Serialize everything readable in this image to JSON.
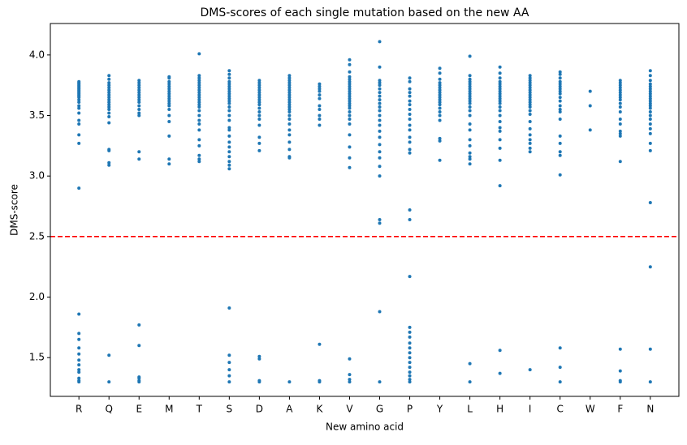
{
  "chart_data": {
    "type": "strip",
    "title": "DMS-scores of each single mutation based on the new AA",
    "x_label": "New amino acid",
    "y_label": "DMS-score",
    "color": "#1f77b4",
    "categories": [
      "R",
      "Q",
      "E",
      "M",
      "T",
      "S",
      "D",
      "A",
      "K",
      "V",
      "G",
      "P",
      "Y",
      "L",
      "H",
      "I",
      "C",
      "W",
      "F",
      "N"
    ],
    "values": [
      [
        3.78,
        3.77,
        3.76,
        3.75,
        3.74,
        3.73,
        3.72,
        3.71,
        3.7,
        3.69,
        3.68,
        3.67,
        3.66,
        3.65,
        3.63,
        3.61,
        3.58,
        3.56,
        3.52,
        3.46,
        3.43,
        3.34,
        3.27,
        2.9,
        1.86,
        1.7,
        1.65,
        1.58,
        1.53,
        1.48,
        1.44,
        1.4,
        1.38,
        1.33,
        1.31,
        1.3
      ],
      [
        3.83,
        3.8,
        3.77,
        3.75,
        3.73,
        3.71,
        3.69,
        3.67,
        3.65,
        3.63,
        3.61,
        3.59,
        3.57,
        3.55,
        3.52,
        3.49,
        3.44,
        3.22,
        3.21,
        3.11,
        3.09,
        1.52,
        1.3
      ],
      [
        3.79,
        3.77,
        3.75,
        3.73,
        3.71,
        3.69,
        3.67,
        3.65,
        3.63,
        3.61,
        3.58,
        3.55,
        3.52,
        3.5,
        3.2,
        3.14,
        1.77,
        1.6,
        1.34,
        1.33,
        1.31,
        1.3
      ],
      [
        3.82,
        3.81,
        3.78,
        3.76,
        3.74,
        3.72,
        3.7,
        3.68,
        3.66,
        3.64,
        3.62,
        3.6,
        3.58,
        3.55,
        3.5,
        3.45,
        3.33,
        3.14,
        3.1
      ],
      [
        4.01,
        3.83,
        3.81,
        3.79,
        3.77,
        3.75,
        3.73,
        3.71,
        3.69,
        3.67,
        3.65,
        3.63,
        3.61,
        3.59,
        3.57,
        3.54,
        3.5,
        3.46,
        3.43,
        3.38,
        3.3,
        3.25,
        3.17,
        3.14,
        3.12
      ],
      [
        3.87,
        3.84,
        3.81,
        3.78,
        3.76,
        3.74,
        3.72,
        3.7,
        3.68,
        3.66,
        3.64,
        3.62,
        3.6,
        3.57,
        3.54,
        3.5,
        3.46,
        3.4,
        3.38,
        3.33,
        3.28,
        3.24,
        3.2,
        3.16,
        3.12,
        3.09,
        3.06,
        1.91,
        1.52,
        1.46,
        1.4,
        1.35,
        1.3
      ],
      [
        3.79,
        3.77,
        3.75,
        3.73,
        3.71,
        3.69,
        3.67,
        3.65,
        3.63,
        3.61,
        3.59,
        3.56,
        3.53,
        3.5,
        3.47,
        3.42,
        3.32,
        3.27,
        3.21,
        1.51,
        1.49,
        1.31,
        1.3
      ],
      [
        3.83,
        3.81,
        3.79,
        3.77,
        3.75,
        3.73,
        3.71,
        3.69,
        3.67,
        3.65,
        3.63,
        3.61,
        3.59,
        3.57,
        3.55,
        3.53,
        3.5,
        3.47,
        3.43,
        3.38,
        3.34,
        3.28,
        3.22,
        3.16,
        3.15,
        1.3
      ],
      [
        3.76,
        3.74,
        3.72,
        3.7,
        3.67,
        3.64,
        3.58,
        3.55,
        3.5,
        3.47,
        3.42,
        1.61,
        1.31,
        1.3
      ],
      [
        3.96,
        3.92,
        3.86,
        3.82,
        3.8,
        3.78,
        3.76,
        3.74,
        3.72,
        3.7,
        3.68,
        3.66,
        3.64,
        3.62,
        3.6,
        3.58,
        3.56,
        3.53,
        3.5,
        3.47,
        3.43,
        3.34,
        3.24,
        3.15,
        3.07,
        1.49,
        1.36,
        1.32,
        1.3
      ],
      [
        4.11,
        3.9,
        3.79,
        3.77,
        3.75,
        3.72,
        3.69,
        3.66,
        3.63,
        3.6,
        3.57,
        3.54,
        3.5,
        3.46,
        3.42,
        3.37,
        3.32,
        3.26,
        3.2,
        3.15,
        3.08,
        3.0,
        2.64,
        2.61,
        1.88,
        1.3
      ],
      [
        3.81,
        3.78,
        3.72,
        3.69,
        3.66,
        3.62,
        3.59,
        3.55,
        3.51,
        3.47,
        3.42,
        3.38,
        3.32,
        3.28,
        3.22,
        3.19,
        2.72,
        2.64,
        2.17,
        1.75,
        1.71,
        1.67,
        1.62,
        1.58,
        1.54,
        1.5,
        1.46,
        1.42,
        1.38,
        1.35,
        1.32,
        1.3
      ],
      [
        3.89,
        3.85,
        3.8,
        3.77,
        3.75,
        3.73,
        3.71,
        3.69,
        3.67,
        3.65,
        3.63,
        3.61,
        3.59,
        3.56,
        3.53,
        3.5,
        3.46,
        3.31,
        3.29,
        3.13
      ],
      [
        3.99,
        3.83,
        3.8,
        3.78,
        3.76,
        3.74,
        3.72,
        3.7,
        3.68,
        3.66,
        3.64,
        3.62,
        3.6,
        3.57,
        3.54,
        3.5,
        3.43,
        3.38,
        3.3,
        3.25,
        3.19,
        3.16,
        3.14,
        3.1,
        1.45,
        1.3
      ],
      [
        3.9,
        3.85,
        3.81,
        3.78,
        3.76,
        3.74,
        3.72,
        3.7,
        3.68,
        3.66,
        3.64,
        3.62,
        3.6,
        3.57,
        3.54,
        3.5,
        3.45,
        3.4,
        3.37,
        3.3,
        3.23,
        3.13,
        2.92,
        1.56,
        1.37
      ],
      [
        3.83,
        3.81,
        3.79,
        3.77,
        3.75,
        3.73,
        3.71,
        3.69,
        3.67,
        3.65,
        3.63,
        3.61,
        3.59,
        3.57,
        3.54,
        3.51,
        3.45,
        3.39,
        3.34,
        3.3,
        3.27,
        3.23,
        3.2,
        1.4
      ],
      [
        3.86,
        3.84,
        3.81,
        3.78,
        3.76,
        3.74,
        3.72,
        3.7,
        3.68,
        3.65,
        3.62,
        3.58,
        3.55,
        3.53,
        3.47,
        3.33,
        3.27,
        3.2,
        3.17,
        3.01,
        1.58,
        1.42,
        1.3
      ],
      [
        3.7,
        3.58,
        3.38
      ],
      [
        3.79,
        3.77,
        3.75,
        3.73,
        3.71,
        3.69,
        3.67,
        3.65,
        3.63,
        3.6,
        3.57,
        3.53,
        3.47,
        3.43,
        3.37,
        3.35,
        3.33,
        3.12,
        1.57,
        1.39,
        1.31,
        1.3
      ],
      [
        3.87,
        3.83,
        3.79,
        3.76,
        3.74,
        3.72,
        3.7,
        3.68,
        3.66,
        3.64,
        3.62,
        3.6,
        3.58,
        3.56,
        3.53,
        3.5,
        3.47,
        3.43,
        3.39,
        3.35,
        3.27,
        3.21,
        2.78,
        2.25,
        1.57,
        1.3
      ]
    ],
    "ylim": [
      1.18,
      4.26
    ],
    "yticks": [
      1.5,
      {
        "value": 2,
        "label": "2.0"
      },
      2.5,
      {
        "value": 3,
        "label": "3.0"
      },
      3.5,
      {
        "value": 4,
        "label": "4.0"
      }
    ],
    "reference_line": {
      "value": 2.5,
      "color": "red",
      "style": "dashed"
    }
  }
}
